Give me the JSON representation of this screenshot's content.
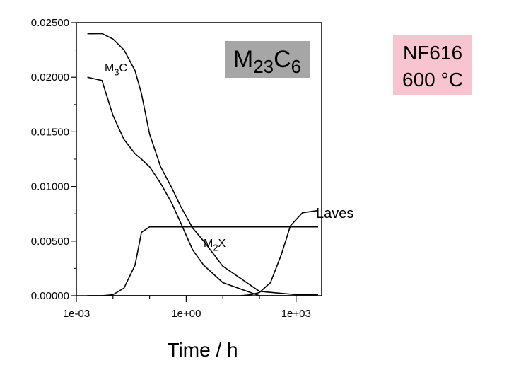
{
  "chart_data": {
    "type": "line",
    "xlabel": "Time / h",
    "ylabel": "",
    "x_scale": "log",
    "xlim": [
      0.001,
      5000
    ],
    "ylim": [
      0,
      0.025
    ],
    "x_ticks": [
      0.001,
      1,
      1000
    ],
    "x_tick_labels": [
      "1e-03",
      "1e+00",
      "1e+03"
    ],
    "y_ticks": [
      0,
      0.005,
      0.01,
      0.015,
      0.02,
      0.025
    ],
    "y_tick_labels": [
      "0.00000",
      "0.00500",
      "0.01000",
      "0.01500",
      "0.02000",
      "0.02500"
    ],
    "grid": false,
    "series": [
      {
        "name": "M23C6",
        "x": [
          0.002,
          0.005,
          0.01,
          0.02,
          0.04,
          0.06,
          0.1,
          0.2,
          0.4,
          0.7,
          1.5,
          3,
          10,
          100,
          1000,
          4000
        ],
        "y": [
          0.02398,
          0.024,
          0.0235,
          0.0225,
          0.0206,
          0.0185,
          0.0148,
          0.0118,
          0.0099,
          0.0082,
          0.0062,
          0.005,
          0.0027,
          0.0004,
          0.0001,
          0.0001
        ]
      },
      {
        "name": "M3C",
        "x": [
          0.002,
          0.005,
          0.01,
          0.02,
          0.04,
          0.06,
          0.1,
          0.2,
          0.4,
          0.7,
          1.5,
          3,
          10,
          100,
          1000,
          4000
        ],
        "y": [
          0.02,
          0.0197,
          0.0165,
          0.0143,
          0.013,
          0.0125,
          0.0118,
          0.0103,
          0.0085,
          0.0067,
          0.0042,
          0.0028,
          0.0012,
          0.0,
          0.0,
          0.0
        ]
      },
      {
        "name": "M2X",
        "x": [
          0.002,
          0.005,
          0.01,
          0.02,
          0.04,
          0.06,
          0.1,
          0.2,
          0.4,
          0.7,
          1.5,
          3,
          10,
          100,
          1000,
          4000
        ],
        "y": [
          0.0,
          0.0,
          0.0001,
          0.0007,
          0.0028,
          0.0058,
          0.0063,
          0.0063,
          0.0063,
          0.0063,
          0.0063,
          0.0063,
          0.0063,
          0.0063,
          0.0063,
          0.0063
        ]
      },
      {
        "name": "Laves",
        "x": [
          0.002,
          0.01,
          0.1,
          1,
          10,
          30,
          60,
          100,
          200,
          400,
          700,
          1500,
          4000
        ],
        "y": [
          0.0,
          0.0,
          0.0,
          0.0,
          0.0,
          0.0,
          0.0001,
          0.0003,
          0.0012,
          0.0038,
          0.0064,
          0.0076,
          0.0078
        ]
      }
    ],
    "annotations": [
      {
        "text": "M3C",
        "base": "M",
        "sub": "3",
        "tail": "C"
      },
      {
        "text": "M23C6",
        "base": "M",
        "sub": "23",
        "tail": "C",
        "sub2": "6"
      },
      {
        "text": "M2X",
        "base": "M",
        "sub": "2",
        "tail": "X"
      },
      {
        "text": "Laves"
      },
      {
        "text": "NF616 600 °C",
        "line1": "NF616",
        "line2": "600 °C"
      }
    ],
    "colors": {
      "line": "#000000",
      "m23_box": "#a6a6a6",
      "nf_box": "#f7c4cf"
    }
  }
}
